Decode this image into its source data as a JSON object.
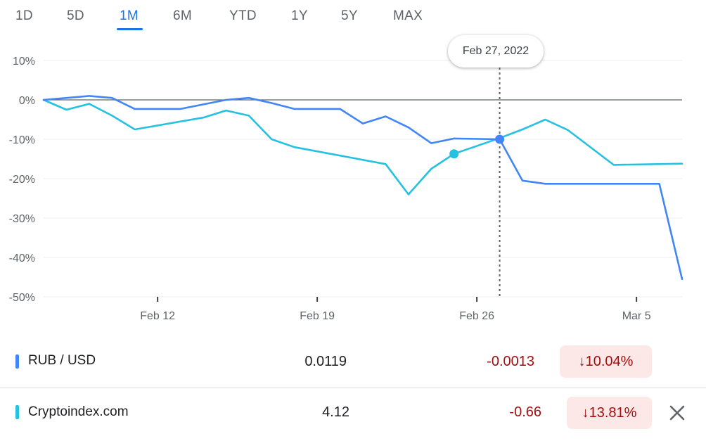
{
  "tabs": [
    {
      "label": "1D"
    },
    {
      "label": "5D"
    },
    {
      "label": "1M"
    },
    {
      "label": "6M"
    },
    {
      "label": "YTD"
    },
    {
      "label": "1Y"
    },
    {
      "label": "5Y"
    },
    {
      "label": "MAX"
    }
  ],
  "active_tab": "1M",
  "tooltip": {
    "date": "Feb 27, 2022"
  },
  "colors": {
    "rub_usd": "#4285f4",
    "cryptoindex": "#24c1e0",
    "negative": "#a50e0e",
    "negative_bg": "#fce8e6",
    "active_tab": "#1a73e8"
  },
  "chart_data": {
    "type": "line",
    "x_labels": [
      "Feb 12",
      "Feb 19",
      "Feb 26",
      "Mar 5"
    ],
    "y_ticks": [
      "10%",
      "0%",
      "-10%",
      "-20%",
      "-30%",
      "-40%",
      "-50%"
    ],
    "ylim": [
      -50,
      10
    ],
    "xlim": [
      "Feb 7, 2022",
      "Mar 7, 2022"
    ],
    "grid": true,
    "zero_line": true,
    "hover_date": "Feb 27, 2022",
    "series": [
      {
        "name": "RUB / USD",
        "color": "#4285f4",
        "points": [
          [
            "Feb 7",
            0.0
          ],
          [
            "Feb 9",
            1.0
          ],
          [
            "Feb 10",
            0.5
          ],
          [
            "Feb 11",
            -2.3
          ],
          [
            "Feb 13",
            -2.3
          ],
          [
            "Feb 15",
            0.0
          ],
          [
            "Feb 16",
            0.5
          ],
          [
            "Feb 17",
            -0.8
          ],
          [
            "Feb 18",
            -2.3
          ],
          [
            "Feb 20",
            -2.3
          ],
          [
            "Feb 21",
            -6.0
          ],
          [
            "Feb 22",
            -4.2
          ],
          [
            "Feb 23",
            -7.0
          ],
          [
            "Feb 24",
            -11.0
          ],
          [
            "Feb 25",
            -9.8
          ],
          [
            "Feb 27",
            -10.0
          ],
          [
            "Feb 28",
            -20.5
          ],
          [
            "Mar 1",
            -21.3
          ],
          [
            "Mar 6",
            -21.3
          ],
          [
            "Mar 7",
            -45.5
          ]
        ]
      },
      {
        "name": "Cryptoindex.com",
        "color": "#24c1e0",
        "points": [
          [
            "Feb 7",
            0.0
          ],
          [
            "Feb 8",
            -2.5
          ],
          [
            "Feb 9",
            -1.0
          ],
          [
            "Feb 10",
            -4.0
          ],
          [
            "Feb 11",
            -7.5
          ],
          [
            "Feb 14",
            -4.5
          ],
          [
            "Feb 15",
            -2.7
          ],
          [
            "Feb 16",
            -4.0
          ],
          [
            "Feb 17",
            -10.0
          ],
          [
            "Feb 18",
            -12.0
          ],
          [
            "Feb 22",
            -16.3
          ],
          [
            "Feb 23",
            -24.0
          ],
          [
            "Feb 24",
            -17.5
          ],
          [
            "Feb 25",
            -13.7
          ],
          [
            "Feb 27",
            -9.7
          ],
          [
            "Feb 28",
            -7.5
          ],
          [
            "Mar 1",
            -5.0
          ],
          [
            "Mar 2",
            -7.7
          ],
          [
            "Mar 4",
            -16.5
          ],
          [
            "Mar 7",
            -16.2
          ]
        ]
      }
    ]
  },
  "rows": [
    {
      "name": "RUB / USD",
      "price": "0.0119",
      "change": "-0.0013",
      "pct": "10.04%"
    },
    {
      "name": "Cryptoindex.com",
      "price": "4.12",
      "change": "-0.66",
      "pct": "13.81%"
    }
  ]
}
